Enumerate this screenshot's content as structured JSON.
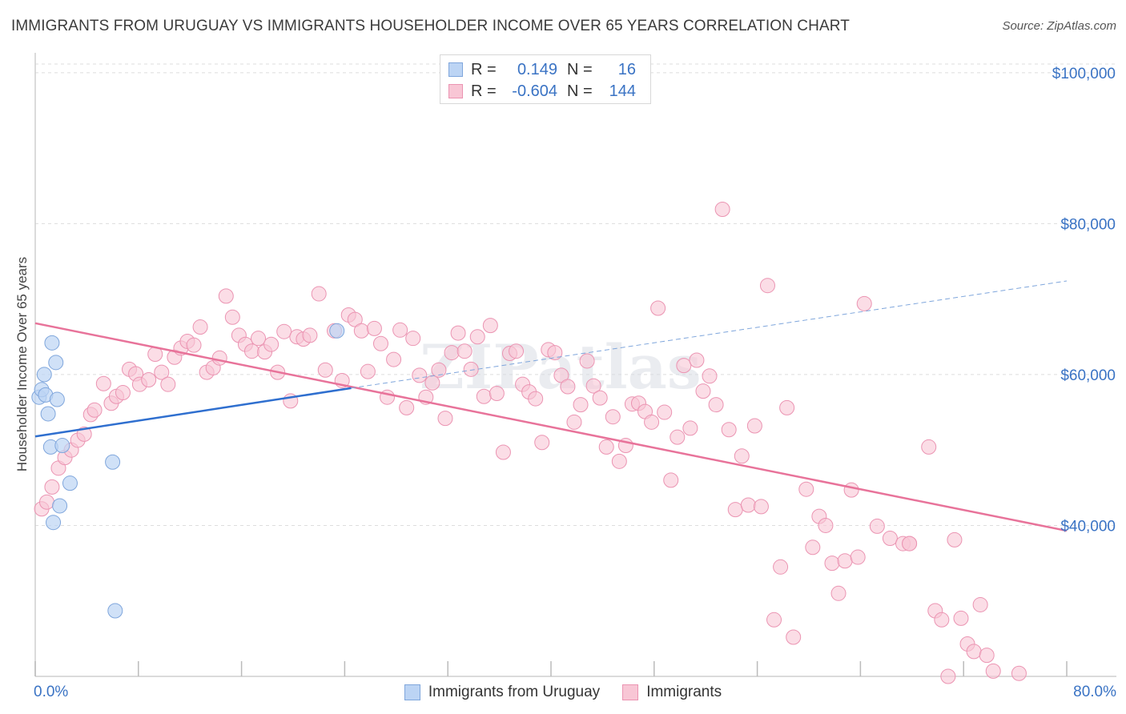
{
  "title": "IMMIGRANTS FROM URUGUAY VS IMMIGRANTS HOUSEHOLDER INCOME OVER 65 YEARS CORRELATION CHART",
  "source": "Source: ZipAtlas.com",
  "stats": [
    {
      "r_label": "R =",
      "r_value": "0.149",
      "n_label": "N =",
      "n_value": "16"
    },
    {
      "r_label": "R =",
      "r_value": "-0.604",
      "n_label": "N =",
      "n_value": "144"
    }
  ],
  "legend": [
    "Immigrants from Uruguay",
    "Immigrants"
  ],
  "colors": {
    "series1_fill": "#bcd4f4",
    "series1_stroke": "#7fa6dc",
    "series1_line": "#2f6fcf",
    "series2_fill": "#f8c6d5",
    "series2_stroke": "#eb94b2",
    "series2_line": "#e8739a",
    "axis_label": "#3a73c4",
    "grid": "#dddddd"
  },
  "chart_data": {
    "type": "scatter",
    "title": "IMMIGRANTS FROM URUGUAY VS IMMIGRANTS HOUSEHOLDER INCOME OVER 65 YEARS CORRELATION CHART",
    "xlabel": "",
    "ylabel": "Householder Income Over 65 years",
    "xlim": [
      0,
      80
    ],
    "ylim": [
      20000,
      102000
    ],
    "x_tick_labels": [
      "0.0%",
      "80.0%"
    ],
    "y_ticks": [
      40000,
      60000,
      80000,
      100000
    ],
    "y_tick_labels": [
      "$40,000",
      "$60,000",
      "$80,000",
      "$100,000"
    ],
    "grid": true,
    "legend_position": "bottom",
    "watermark": "ZIPatlas",
    "series": [
      {
        "name": "Immigrants from Uruguay",
        "points": [
          [
            0.3,
            57000
          ],
          [
            0.5,
            58000
          ],
          [
            0.7,
            60000
          ],
          [
            0.8,
            57300
          ],
          [
            1.0,
            54800
          ],
          [
            1.2,
            50400
          ],
          [
            1.3,
            64200
          ],
          [
            1.4,
            40400
          ],
          [
            1.6,
            61600
          ],
          [
            1.7,
            56700
          ],
          [
            1.9,
            42600
          ],
          [
            2.1,
            50600
          ],
          [
            2.7,
            45600
          ],
          [
            6.0,
            48400
          ],
          [
            6.2,
            28700
          ],
          [
            23.4,
            65800
          ]
        ],
        "trend": {
          "x": [
            0,
            24.5
          ],
          "y": [
            51800,
            58200
          ]
        },
        "trend_dashed": {
          "x": [
            24.5,
            80
          ],
          "y": [
            58200,
            72400
          ]
        }
      },
      {
        "name": "Immigrants",
        "points": [
          [
            0.5,
            42200
          ],
          [
            0.9,
            43100
          ],
          [
            1.3,
            45100
          ],
          [
            1.8,
            47600
          ],
          [
            2.3,
            49000
          ],
          [
            2.8,
            50000
          ],
          [
            3.3,
            51300
          ],
          [
            3.8,
            52100
          ],
          [
            4.3,
            54700
          ],
          [
            4.6,
            55300
          ],
          [
            5.3,
            58800
          ],
          [
            5.9,
            56200
          ],
          [
            6.3,
            57100
          ],
          [
            6.8,
            57600
          ],
          [
            7.3,
            60700
          ],
          [
            7.8,
            60100
          ],
          [
            8.1,
            58700
          ],
          [
            8.8,
            59300
          ],
          [
            9.3,
            62700
          ],
          [
            9.8,
            60300
          ],
          [
            10.3,
            58700
          ],
          [
            10.8,
            62300
          ],
          [
            11.3,
            63500
          ],
          [
            11.8,
            64400
          ],
          [
            12.3,
            63900
          ],
          [
            12.8,
            66300
          ],
          [
            13.3,
            60300
          ],
          [
            13.8,
            60900
          ],
          [
            14.3,
            62200
          ],
          [
            14.8,
            70400
          ],
          [
            15.3,
            67600
          ],
          [
            15.8,
            65200
          ],
          [
            16.3,
            64000
          ],
          [
            16.8,
            63100
          ],
          [
            17.3,
            64800
          ],
          [
            17.8,
            63000
          ],
          [
            18.3,
            64000
          ],
          [
            18.8,
            60300
          ],
          [
            19.3,
            65700
          ],
          [
            19.8,
            56500
          ],
          [
            20.3,
            65000
          ],
          [
            20.8,
            64700
          ],
          [
            21.3,
            65200
          ],
          [
            22.0,
            70700
          ],
          [
            22.5,
            60600
          ],
          [
            23.2,
            65800
          ],
          [
            23.8,
            59200
          ],
          [
            24.3,
            67900
          ],
          [
            24.8,
            67300
          ],
          [
            25.3,
            65800
          ],
          [
            25.8,
            60400
          ],
          [
            26.3,
            66100
          ],
          [
            26.8,
            64100
          ],
          [
            27.3,
            57000
          ],
          [
            27.8,
            62000
          ],
          [
            28.3,
            65900
          ],
          [
            28.8,
            55600
          ],
          [
            29.3,
            64800
          ],
          [
            29.8,
            59900
          ],
          [
            30.3,
            57000
          ],
          [
            30.8,
            58900
          ],
          [
            31.3,
            60600
          ],
          [
            31.8,
            54200
          ],
          [
            32.3,
            62900
          ],
          [
            32.8,
            65500
          ],
          [
            33.3,
            63100
          ],
          [
            33.8,
            60700
          ],
          [
            34.3,
            65000
          ],
          [
            34.8,
            57100
          ],
          [
            35.3,
            66500
          ],
          [
            35.8,
            57500
          ],
          [
            36.3,
            49700
          ],
          [
            36.8,
            62800
          ],
          [
            37.3,
            63100
          ],
          [
            37.8,
            58700
          ],
          [
            38.3,
            57700
          ],
          [
            38.8,
            56800
          ],
          [
            39.3,
            51000
          ],
          [
            39.8,
            63300
          ],
          [
            40.3,
            62900
          ],
          [
            40.8,
            59900
          ],
          [
            41.3,
            58400
          ],
          [
            41.8,
            53700
          ],
          [
            42.3,
            56000
          ],
          [
            42.8,
            61800
          ],
          [
            43.3,
            58500
          ],
          [
            43.8,
            56900
          ],
          [
            44.3,
            50400
          ],
          [
            44.8,
            54400
          ],
          [
            45.3,
            48500
          ],
          [
            45.8,
            50600
          ],
          [
            46.3,
            56100
          ],
          [
            46.8,
            56200
          ],
          [
            47.3,
            55100
          ],
          [
            47.8,
            53700
          ],
          [
            48.3,
            68800
          ],
          [
            48.8,
            55000
          ],
          [
            49.3,
            46000
          ],
          [
            49.8,
            51700
          ],
          [
            50.3,
            61200
          ],
          [
            50.8,
            52900
          ],
          [
            51.3,
            61900
          ],
          [
            51.8,
            57800
          ],
          [
            52.3,
            59800
          ],
          [
            52.8,
            56000
          ],
          [
            53.3,
            81900
          ],
          [
            53.8,
            52700
          ],
          [
            54.3,
            42100
          ],
          [
            54.8,
            49200
          ],
          [
            55.3,
            42700
          ],
          [
            55.8,
            53200
          ],
          [
            56.3,
            42500
          ],
          [
            56.8,
            71800
          ],
          [
            57.3,
            27500
          ],
          [
            57.8,
            34500
          ],
          [
            58.3,
            55600
          ],
          [
            58.8,
            25200
          ],
          [
            59.8,
            44800
          ],
          [
            60.3,
            37100
          ],
          [
            60.8,
            41200
          ],
          [
            61.3,
            40000
          ],
          [
            61.8,
            35000
          ],
          [
            62.3,
            31000
          ],
          [
            62.8,
            35300
          ],
          [
            63.3,
            44700
          ],
          [
            63.8,
            35800
          ],
          [
            64.3,
            69400
          ],
          [
            65.3,
            39900
          ],
          [
            66.3,
            38300
          ],
          [
            67.3,
            37600
          ],
          [
            67.8,
            37600
          ],
          [
            69.3,
            50400
          ],
          [
            69.8,
            28700
          ],
          [
            70.3,
            27500
          ],
          [
            71.3,
            38100
          ],
          [
            71.8,
            27700
          ],
          [
            72.3,
            24300
          ],
          [
            72.8,
            23300
          ],
          [
            73.3,
            29500
          ],
          [
            73.8,
            22800
          ],
          [
            74.3,
            20700
          ],
          [
            76.3,
            20400
          ],
          [
            70.8,
            20000
          ],
          [
            67.8,
            37600
          ]
        ],
        "trend": {
          "x": [
            0,
            80
          ],
          "y": [
            66800,
            39300
          ]
        }
      }
    ]
  }
}
